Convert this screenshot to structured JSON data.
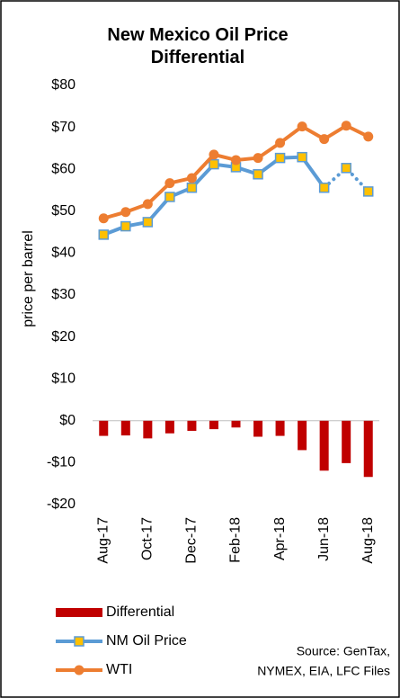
{
  "chart_data": {
    "type": "combo",
    "title": "New Mexico Oil Price Differential",
    "categories": [
      "Aug-17",
      null,
      "Oct-17",
      null,
      "Dec-17",
      null,
      "Feb-18",
      null,
      "Apr-18",
      null,
      "Jun-18",
      null,
      "Aug-18"
    ],
    "y_label": "price per barrel",
    "ylim": [
      -20,
      80
    ],
    "yticks": [
      {
        "value": 80,
        "label": "$80"
      },
      {
        "value": 70,
        "label": "$70"
      },
      {
        "value": 60,
        "label": "$60"
      },
      {
        "value": 50,
        "label": "$50"
      },
      {
        "value": 40,
        "label": "$40"
      },
      {
        "value": 30,
        "label": "$30"
      },
      {
        "value": 20,
        "label": "$20"
      },
      {
        "value": 10,
        "label": "$10"
      },
      {
        "value": 0,
        "label": "$0"
      },
      {
        "value": -10,
        "label": "-$10"
      },
      {
        "value": -20,
        "label": "-$20"
      }
    ],
    "series": [
      {
        "name": "Differential",
        "kind": "bar",
        "color": "#c00000",
        "values": [
          -3.6,
          -3.5,
          -4.2,
          -3.0,
          -2.4,
          -2.0,
          -1.6,
          -3.8,
          -3.6,
          -7.0,
          -11.9,
          -10.1,
          -13.4
        ]
      },
      {
        "name": "NM Oil Price",
        "kind": "line",
        "marker": "square",
        "color": "#5b9bd5",
        "marker_color": "#ffc000",
        "dotted_from": 10,
        "values": [
          44.4,
          46.4,
          47.4,
          53.4,
          55.6,
          61.2,
          60.5,
          58.8,
          62.7,
          62.9,
          55.6,
          60.3,
          54.7
        ]
      },
      {
        "name": "WTI",
        "kind": "line",
        "marker": "circle",
        "color": "#ed7d31",
        "values": [
          48.3,
          49.8,
          51.7,
          56.7,
          57.9,
          63.5,
          62.2,
          62.7,
          66.3,
          70.2,
          67.2,
          70.4,
          67.8
        ]
      }
    ],
    "source": [
      "Source: GenTax,",
      "NYMEX, EIA, LFC Files"
    ]
  }
}
